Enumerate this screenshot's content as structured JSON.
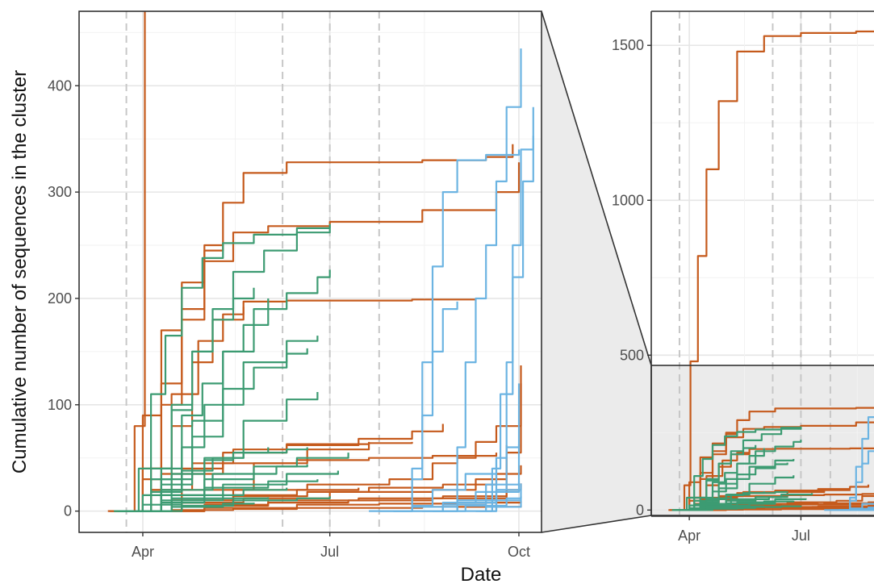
{
  "chart_data": {
    "type": "line",
    "ylabel": "Cumulative number of sequences in the cluster",
    "xlabel": "Date",
    "x_tick_labels": [
      "Apr",
      "Jul",
      "Oct"
    ],
    "vertical_dashed_lines": [
      "2020-03-24",
      "2020-06-08",
      "2020-07-01",
      "2020-07-25"
    ],
    "colors": {
      "orange": "#C55A1C",
      "green": "#3C9B72",
      "blue": "#6CB4E2"
    },
    "panels": [
      {
        "name": "main",
        "xlim": [
          "2020-03-01",
          "2020-10-12"
        ],
        "ylim": [
          -20,
          470
        ],
        "y_ticks": [
          0,
          100,
          200,
          300,
          400
        ],
        "y_tick_labels": [
          "0",
          "100",
          "200",
          "300",
          "400"
        ],
        "grid": true
      },
      {
        "name": "inset",
        "xlim": [
          "2020-03-01",
          "2020-10-12"
        ],
        "ylim": [
          -20,
          1610
        ],
        "y_ticks": [
          0,
          500,
          1000,
          1500
        ],
        "y_tick_labels": [
          "0",
          "500",
          "1000",
          "1500"
        ],
        "grid": true,
        "shaded_range": [
          -20,
          470
        ]
      }
    ],
    "series": [
      {
        "group": "orange",
        "x": [
          "2020-03-16",
          "2020-03-28",
          "2020-04-02",
          "2020-04-08",
          "2020-04-15",
          "2020-04-25",
          "2020-05-10",
          "2020-06-01",
          "2020-07-01",
          "2020-08-15",
          "2020-09-01",
          "2020-10-01"
        ],
        "y": [
          0,
          80,
          480,
          820,
          1100,
          1320,
          1480,
          1530,
          1540,
          1545,
          1550,
          1560
        ]
      },
      {
        "group": "orange",
        "x": [
          "2020-03-20",
          "2020-04-01",
          "2020-04-10",
          "2020-04-20",
          "2020-05-01",
          "2020-05-10",
          "2020-05-20",
          "2020-06-10",
          "2020-08-15",
          "2020-09-15",
          "2020-09-28"
        ],
        "y": [
          0,
          40,
          120,
          190,
          250,
          290,
          318,
          328,
          330,
          333,
          345
        ]
      },
      {
        "group": "orange",
        "x": [
          "2020-03-20",
          "2020-04-01",
          "2020-04-10",
          "2020-04-20",
          "2020-05-01",
          "2020-05-15",
          "2020-06-01",
          "2020-07-01",
          "2020-08-15",
          "2020-09-20",
          "2020-10-01"
        ],
        "y": [
          0,
          30,
          100,
          180,
          235,
          262,
          268,
          272,
          283,
          300,
          328
        ]
      },
      {
        "group": "orange",
        "x": [
          "2020-03-22",
          "2020-04-05",
          "2020-04-15",
          "2020-04-25",
          "2020-05-05",
          "2020-05-20",
          "2020-06-10",
          "2020-07-10",
          "2020-08-10",
          "2020-09-10"
        ],
        "y": [
          0,
          20,
          80,
          140,
          180,
          197,
          198,
          198,
          199,
          200
        ]
      },
      {
        "group": "orange",
        "x": [
          "2020-03-22",
          "2020-04-05",
          "2020-04-15",
          "2020-04-28",
          "2020-05-10",
          "2020-05-20"
        ],
        "y": [
          0,
          40,
          110,
          160,
          185,
          192
        ]
      },
      {
        "group": "orange",
        "x": [
          "2020-03-18",
          "2020-04-01",
          "2020-04-10",
          "2020-04-20",
          "2020-05-01",
          "2020-05-10"
        ],
        "y": [
          0,
          90,
          170,
          215,
          245,
          252
        ]
      },
      {
        "group": "orange",
        "x": [
          "2020-03-25",
          "2020-04-10",
          "2020-04-25",
          "2020-05-15",
          "2020-06-10",
          "2020-07-20",
          "2020-08-10"
        ],
        "y": [
          0,
          20,
          45,
          58,
          63,
          64,
          65
        ]
      },
      {
        "group": "orange",
        "x": [
          "2020-03-22",
          "2020-04-05",
          "2020-04-20",
          "2020-05-10",
          "2020-06-10",
          "2020-07-15",
          "2020-08-10",
          "2020-08-25"
        ],
        "y": [
          0,
          20,
          40,
          55,
          62,
          68,
          75,
          82
        ]
      },
      {
        "group": "orange",
        "x": [
          "2020-03-25",
          "2020-04-15",
          "2020-05-15",
          "2020-06-20",
          "2020-07-30",
          "2020-08-20",
          "2020-09-01",
          "2020-09-10",
          "2020-09-20",
          "2020-10-02"
        ],
        "y": [
          0,
          10,
          20,
          25,
          30,
          45,
          50,
          65,
          80,
          137
        ]
      },
      {
        "group": "orange",
        "x": [
          "2020-03-28",
          "2020-04-20",
          "2020-05-20",
          "2020-07-01",
          "2020-08-20",
          "2020-09-10",
          "2020-09-25",
          "2020-10-02"
        ],
        "y": [
          0,
          8,
          12,
          18,
          20,
          30,
          55,
          120
        ]
      },
      {
        "group": "orange",
        "x": [
          "2020-03-20",
          "2020-04-10",
          "2020-05-10",
          "2020-06-15",
          "2020-07-20",
          "2020-08-20",
          "2020-09-20"
        ],
        "y": [
          0,
          35,
          45,
          48,
          50,
          52,
          55
        ]
      },
      {
        "group": "orange",
        "x": [
          "2020-04-01",
          "2020-04-20",
          "2020-05-15",
          "2020-06-20",
          "2020-07-20",
          "2020-08-25",
          "2020-09-20",
          "2020-10-02"
        ],
        "y": [
          0,
          8,
          14,
          18,
          22,
          25,
          35,
          43
        ]
      },
      {
        "group": "orange",
        "x": [
          "2020-04-01",
          "2020-05-01",
          "2020-06-01",
          "2020-07-15",
          "2020-08-25",
          "2020-09-25",
          "2020-10-02"
        ],
        "y": [
          0,
          5,
          10,
          12,
          14,
          20,
          26
        ]
      },
      {
        "group": "orange",
        "x": [
          "2020-04-05",
          "2020-05-01",
          "2020-06-15",
          "2020-07-25",
          "2020-09-01",
          "2020-10-02"
        ],
        "y": [
          0,
          3,
          6,
          7,
          8,
          9
        ]
      },
      {
        "group": "orange",
        "x": [
          "2020-03-15",
          "2020-04-15",
          "2020-05-15",
          "2020-06-15",
          "2020-07-15",
          "2020-08-15",
          "2020-09-15",
          "2020-10-02"
        ],
        "y": [
          0,
          1,
          2,
          3,
          3,
          4,
          4,
          5
        ]
      },
      {
        "group": "orange",
        "x": [
          "2020-03-25",
          "2020-04-15",
          "2020-05-15",
          "2020-06-15",
          "2020-07-15"
        ],
        "y": [
          0,
          10,
          15,
          20,
          22
        ]
      },
      {
        "group": "orange",
        "x": [
          "2020-03-28",
          "2020-04-20",
          "2020-05-25",
          "2020-06-20",
          "2020-07-20"
        ],
        "y": [
          0,
          20,
          45,
          58,
          65
        ]
      },
      {
        "group": "orange",
        "x": [
          "2020-04-05",
          "2020-05-01",
          "2020-06-01",
          "2020-07-10",
          "2020-08-20",
          "2020-09-25"
        ],
        "y": [
          0,
          6,
          8,
          10,
          12,
          62
        ]
      },
      {
        "group": "green",
        "x": [
          "2020-03-20",
          "2020-03-30",
          "2020-04-05",
          "2020-04-12",
          "2020-04-20",
          "2020-04-30",
          "2020-05-10",
          "2020-05-25",
          "2020-06-15",
          "2020-07-01"
        ],
        "y": [
          0,
          40,
          110,
          165,
          210,
          238,
          252,
          260,
          266,
          268
        ]
      },
      {
        "group": "green",
        "x": [
          "2020-03-22",
          "2020-04-05",
          "2020-04-15",
          "2020-04-25",
          "2020-05-05",
          "2020-05-15",
          "2020-05-30",
          "2020-06-15",
          "2020-07-01"
        ],
        "y": [
          0,
          30,
          95,
          150,
          190,
          225,
          245,
          262,
          270
        ]
      },
      {
        "group": "green",
        "x": [
          "2020-03-22",
          "2020-04-05",
          "2020-04-15",
          "2020-04-25",
          "2020-05-05",
          "2020-05-15",
          "2020-05-25"
        ],
        "y": [
          0,
          40,
          100,
          150,
          180,
          200,
          210
        ]
      },
      {
        "group": "green",
        "x": [
          "2020-03-25",
          "2020-04-10",
          "2020-04-25",
          "2020-05-10",
          "2020-05-25",
          "2020-06-10",
          "2020-06-25",
          "2020-07-01"
        ],
        "y": [
          0,
          30,
          85,
          150,
          190,
          205,
          220,
          227
        ]
      },
      {
        "group": "green",
        "x": [
          "2020-03-25",
          "2020-04-10",
          "2020-04-20",
          "2020-04-30",
          "2020-05-10",
          "2020-05-20",
          "2020-06-01"
        ],
        "y": [
          0,
          40,
          90,
          120,
          150,
          175,
          200
        ]
      },
      {
        "group": "green",
        "x": [
          "2020-03-25",
          "2020-04-10",
          "2020-04-20",
          "2020-05-01",
          "2020-05-20",
          "2020-06-10",
          "2020-06-25"
        ],
        "y": [
          0,
          20,
          60,
          100,
          140,
          160,
          165
        ]
      },
      {
        "group": "green",
        "x": [
          "2020-03-28",
          "2020-04-10",
          "2020-04-25",
          "2020-05-10",
          "2020-05-25",
          "2020-06-10",
          "2020-06-20"
        ],
        "y": [
          0,
          25,
          70,
          115,
          135,
          148,
          153
        ]
      },
      {
        "group": "green",
        "x": [
          "2020-03-28",
          "2020-04-15",
          "2020-05-01",
          "2020-05-20",
          "2020-06-10",
          "2020-06-25"
        ],
        "y": [
          0,
          15,
          50,
          85,
          105,
          112
        ]
      },
      {
        "group": "green",
        "x": [
          "2020-03-20",
          "2020-04-05",
          "2020-04-20",
          "2020-05-05",
          "2020-05-20",
          "2020-06-10",
          "2020-06-20"
        ],
        "y": [
          0,
          18,
          38,
          50,
          55,
          58,
          60
        ]
      },
      {
        "group": "green",
        "x": [
          "2020-03-18",
          "2020-04-01",
          "2020-04-15",
          "2020-05-01",
          "2020-05-15",
          "2020-06-01"
        ],
        "y": [
          0,
          15,
          35,
          48,
          55,
          60
        ]
      },
      {
        "group": "green",
        "x": [
          "2020-03-20",
          "2020-04-10",
          "2020-05-01",
          "2020-05-25",
          "2020-06-15",
          "2020-07-10"
        ],
        "y": [
          0,
          15,
          30,
          42,
          50,
          55
        ]
      },
      {
        "group": "green",
        "x": [
          "2020-03-22",
          "2020-04-10",
          "2020-05-01",
          "2020-06-01",
          "2020-06-25"
        ],
        "y": [
          0,
          10,
          22,
          28,
          30
        ]
      },
      {
        "group": "green",
        "x": [
          "2020-03-22",
          "2020-04-15",
          "2020-05-10",
          "2020-06-10",
          "2020-07-05"
        ],
        "y": [
          0,
          12,
          25,
          35,
          38
        ]
      },
      {
        "group": "green",
        "x": [
          "2020-03-20",
          "2020-04-10",
          "2020-05-01",
          "2020-05-20",
          "2020-06-10"
        ],
        "y": [
          0,
          8,
          15,
          20,
          22
        ]
      },
      {
        "group": "green",
        "x": [
          "2020-03-25",
          "2020-04-20",
          "2020-05-15",
          "2020-06-15",
          "2020-07-01"
        ],
        "y": [
          0,
          5,
          10,
          12,
          14
        ]
      },
      {
        "group": "green",
        "x": [
          "2020-03-18",
          "2020-04-01",
          "2020-04-20",
          "2020-05-10",
          "2020-06-01"
        ],
        "y": [
          0,
          6,
          10,
          12,
          13
        ]
      },
      {
        "group": "green",
        "x": [
          "2020-03-25",
          "2020-04-15",
          "2020-05-10",
          "2020-05-25"
        ],
        "y": [
          0,
          4,
          7,
          8
        ]
      },
      {
        "group": "green",
        "x": [
          "2020-03-22",
          "2020-04-10",
          "2020-05-05",
          "2020-06-05",
          "2020-06-20"
        ],
        "y": [
          0,
          20,
          35,
          42,
          44
        ]
      },
      {
        "group": "blue",
        "x": [
          "2020-08-25",
          "2020-09-01",
          "2020-09-05",
          "2020-09-10",
          "2020-09-15",
          "2020-09-20",
          "2020-09-25",
          "2020-10-02"
        ],
        "y": [
          0,
          60,
          140,
          200,
          250,
          310,
          380,
          435
        ]
      },
      {
        "group": "blue",
        "x": [
          "2020-08-01",
          "2020-08-10",
          "2020-08-15",
          "2020-08-20",
          "2020-08-25",
          "2020-09-01",
          "2020-09-15",
          "2020-10-01"
        ],
        "y": [
          0,
          40,
          140,
          230,
          300,
          330,
          335,
          340
        ]
      },
      {
        "group": "blue",
        "x": [
          "2020-09-15",
          "2020-09-20",
          "2020-09-25",
          "2020-09-28",
          "2020-10-02",
          "2020-10-08"
        ],
        "y": [
          0,
          50,
          140,
          250,
          340,
          380
        ]
      },
      {
        "group": "blue",
        "x": [
          "2020-09-12",
          "2020-09-18",
          "2020-09-22",
          "2020-09-28",
          "2020-10-03",
          "2020-10-08"
        ],
        "y": [
          0,
          40,
          110,
          220,
          310,
          353
        ]
      },
      {
        "group": "blue",
        "x": [
          "2020-08-05",
          "2020-08-10",
          "2020-08-15",
          "2020-08-20",
          "2020-08-25",
          "2020-09-01"
        ],
        "y": [
          0,
          30,
          90,
          150,
          190,
          197
        ]
      },
      {
        "group": "blue",
        "x": [
          "2020-09-10",
          "2020-09-20",
          "2020-09-25",
          "2020-10-01"
        ],
        "y": [
          0,
          20,
          60,
          120
        ]
      },
      {
        "group": "blue",
        "x": [
          "2020-08-20",
          "2020-09-01",
          "2020-09-15",
          "2020-10-01"
        ],
        "y": [
          0,
          10,
          25,
          63
        ]
      },
      {
        "group": "blue",
        "x": [
          "2020-07-25",
          "2020-08-10",
          "2020-08-20",
          "2020-09-05",
          "2020-09-20"
        ],
        "y": [
          0,
          5,
          20,
          35,
          48
        ]
      },
      {
        "group": "blue",
        "x": [
          "2020-08-10",
          "2020-08-25",
          "2020-09-10",
          "2020-10-01"
        ],
        "y": [
          0,
          8,
          18,
          28
        ]
      },
      {
        "group": "blue",
        "x": [
          "2020-08-15",
          "2020-09-01",
          "2020-09-20",
          "2020-10-02"
        ],
        "y": [
          0,
          10,
          20,
          26
        ]
      },
      {
        "group": "blue",
        "x": [
          "2020-08-20",
          "2020-09-05",
          "2020-09-25",
          "2020-10-02"
        ],
        "y": [
          0,
          5,
          12,
          20
        ]
      },
      {
        "group": "blue",
        "x": [
          "2020-07-20",
          "2020-08-10",
          "2020-09-01",
          "2020-09-20"
        ],
        "y": [
          0,
          4,
          8,
          12
        ]
      },
      {
        "group": "blue",
        "x": [
          "2020-08-01",
          "2020-08-25",
          "2020-09-15",
          "2020-10-02"
        ],
        "y": [
          0,
          6,
          10,
          14
        ]
      },
      {
        "group": "blue",
        "x": [
          "2020-09-01",
          "2020-09-15",
          "2020-10-02"
        ],
        "y": [
          0,
          4,
          10
        ]
      }
    ]
  }
}
